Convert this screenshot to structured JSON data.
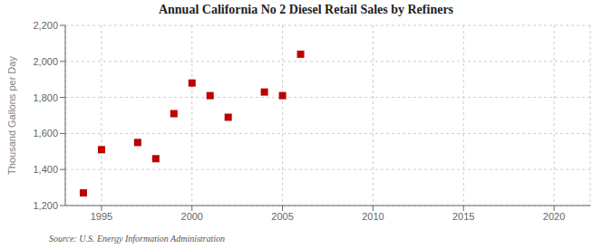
{
  "chart_data": {
    "type": "scatter",
    "title": "Annual California No 2 Diesel Retail Sales by Refiners",
    "ylabel": "Thousand Gallons per Day",
    "annotation": "Source: U.S. Energy Information Administration",
    "x": [
      1994,
      1995,
      1997,
      1998,
      1999,
      2000,
      2001,
      2002,
      2004,
      2005,
      2006
    ],
    "values": [
      1270,
      1510,
      1550,
      1460,
      1710,
      1880,
      1810,
      1690,
      1830,
      1810,
      2040
    ],
    "color": "#bb0000",
    "marker": "square",
    "grid": true,
    "xlim": [
      1993,
      2022
    ],
    "ylim": [
      1200,
      2200
    ],
    "xticks": [
      1995,
      2000,
      2005,
      2010,
      2015,
      2020
    ],
    "yticks": [
      {
        "value": 1200,
        "label": "1,200"
      },
      {
        "value": 1400,
        "label": "1,400"
      },
      {
        "value": 1600,
        "label": "1,600"
      },
      {
        "value": 1800,
        "label": "1,800"
      },
      {
        "value": 2000,
        "label": "2,000"
      },
      {
        "value": 2200,
        "label": "2,200"
      }
    ]
  }
}
